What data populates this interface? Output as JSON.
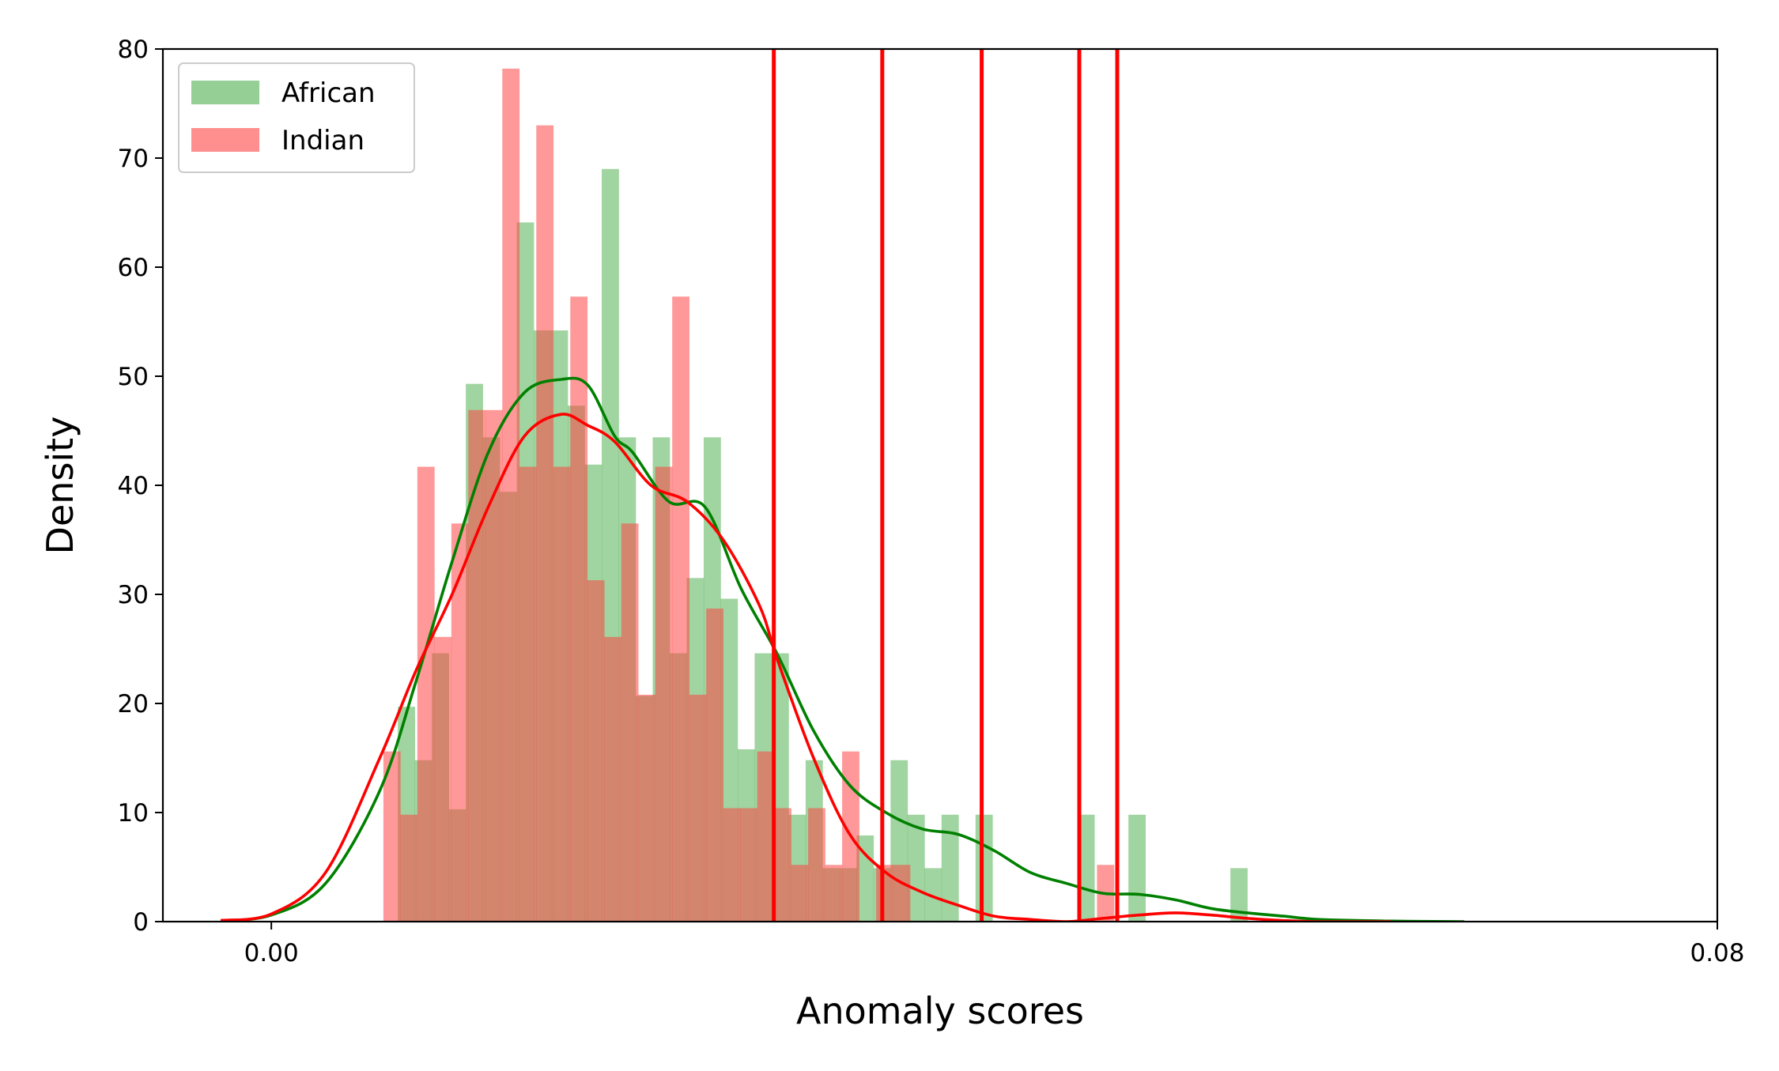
{
  "chart_data": {
    "type": "bar",
    "title": "",
    "xlabel": "Anomaly scores",
    "ylabel": "Density",
    "xlim": [
      -0.006,
      0.08
    ],
    "ylim": [
      0,
      80
    ],
    "x_ticks": [
      {
        "value": 0.0,
        "label": "0.00"
      },
      {
        "value": 0.08,
        "label": "0.08"
      }
    ],
    "y_ticks": [
      {
        "value": 0,
        "label": "0"
      },
      {
        "value": 10,
        "label": "10"
      },
      {
        "value": 20,
        "label": "20"
      },
      {
        "value": 30,
        "label": "30"
      },
      {
        "value": 40,
        "label": "40"
      },
      {
        "value": 50,
        "label": "50"
      },
      {
        "value": 60,
        "label": "60"
      },
      {
        "value": 70,
        "label": "70"
      },
      {
        "value": 80,
        "label": "80"
      }
    ],
    "grid": false,
    "legend_position": "top-left",
    "bin_width": 0.00094,
    "histograms": [
      {
        "name": "African",
        "color": "#2ca02c",
        "opacity": 0.45,
        "x_start": 0.007,
        "values": [
          19.7,
          14.8,
          24.6,
          10.3,
          49.3,
          44.4,
          39.4,
          64.1,
          54.2,
          54.2,
          47.3,
          41.9,
          69.0,
          44.4,
          20.7,
          44.4,
          24.6,
          31.5,
          44.4,
          29.6,
          15.8,
          24.6,
          24.6,
          9.8,
          14.8,
          4.9,
          4.9,
          7.9,
          4.9,
          14.8,
          9.8,
          4.9,
          9.8,
          0,
          9.8,
          0,
          0,
          0,
          0,
          0,
          9.8,
          0,
          0,
          9.8,
          0,
          0,
          0,
          0,
          0,
          4.9
        ]
      },
      {
        "name": "Indian",
        "color": "#ff4444",
        "opacity": 0.55,
        "x_start": 0.0062,
        "values": [
          15.6,
          9.8,
          41.7,
          26.1,
          36.5,
          46.9,
          46.9,
          78.2,
          41.7,
          73.0,
          41.7,
          57.3,
          31.3,
          26.1,
          36.5,
          20.8,
          41.7,
          57.3,
          20.8,
          28.7,
          10.4,
          10.4,
          15.6,
          10.4,
          5.2,
          10.4,
          5.2,
          15.6,
          0,
          5.2,
          5.2,
          0,
          0,
          0,
          0,
          0,
          0,
          0,
          0,
          0,
          0,
          0,
          5.2
        ]
      }
    ],
    "kde_series": [
      {
        "name": "African",
        "color": "#008000",
        "x": [
          -0.0028,
          0.0,
          0.003,
          0.006,
          0.008,
          0.01,
          0.012,
          0.014,
          0.016,
          0.0175,
          0.019,
          0.02,
          0.022,
          0.024,
          0.026,
          0.028,
          0.03,
          0.032,
          0.034,
          0.036,
          0.038,
          0.04,
          0.042,
          0.044,
          0.046,
          0.048,
          0.05,
          0.052,
          0.054,
          0.056,
          0.058,
          0.062,
          0.066
        ],
        "y": [
          0.1,
          0.6,
          3.5,
          12.0,
          22.0,
          33.0,
          43.0,
          48.5,
          49.7,
          49.2,
          44.5,
          43.0,
          38.5,
          38.0,
          30.5,
          24.5,
          17.5,
          12.5,
          10.0,
          8.5,
          8.0,
          6.5,
          4.5,
          3.5,
          2.6,
          2.5,
          2.0,
          1.2,
          0.8,
          0.5,
          0.2,
          0.05,
          0.0
        ]
      },
      {
        "name": "Indian",
        "color": "#ff0000",
        "x": [
          -0.0028,
          0.0,
          0.003,
          0.006,
          0.008,
          0.01,
          0.012,
          0.014,
          0.016,
          0.0175,
          0.019,
          0.021,
          0.023,
          0.025,
          0.027,
          0.028,
          0.03,
          0.032,
          0.034,
          0.036,
          0.038,
          0.04,
          0.042,
          0.044,
          0.046,
          0.048,
          0.05,
          0.052,
          0.054,
          0.056,
          0.058,
          0.062
        ],
        "y": [
          0.1,
          0.7,
          4.5,
          15.0,
          23.0,
          30.0,
          38.0,
          44.5,
          46.5,
          45.5,
          44.0,
          40.0,
          38.5,
          35.0,
          29.0,
          24.0,
          15.0,
          8.0,
          4.5,
          2.7,
          1.5,
          0.5,
          0.2,
          0.0,
          0.3,
          0.6,
          0.8,
          0.6,
          0.3,
          0.1,
          0.0,
          0.0
        ]
      }
    ],
    "vertical_lines": {
      "color": "#ff0000",
      "x": [
        0.0278,
        0.0338,
        0.0393,
        0.0447,
        0.0468
      ],
      "y_range": [
        0,
        80
      ]
    }
  }
}
